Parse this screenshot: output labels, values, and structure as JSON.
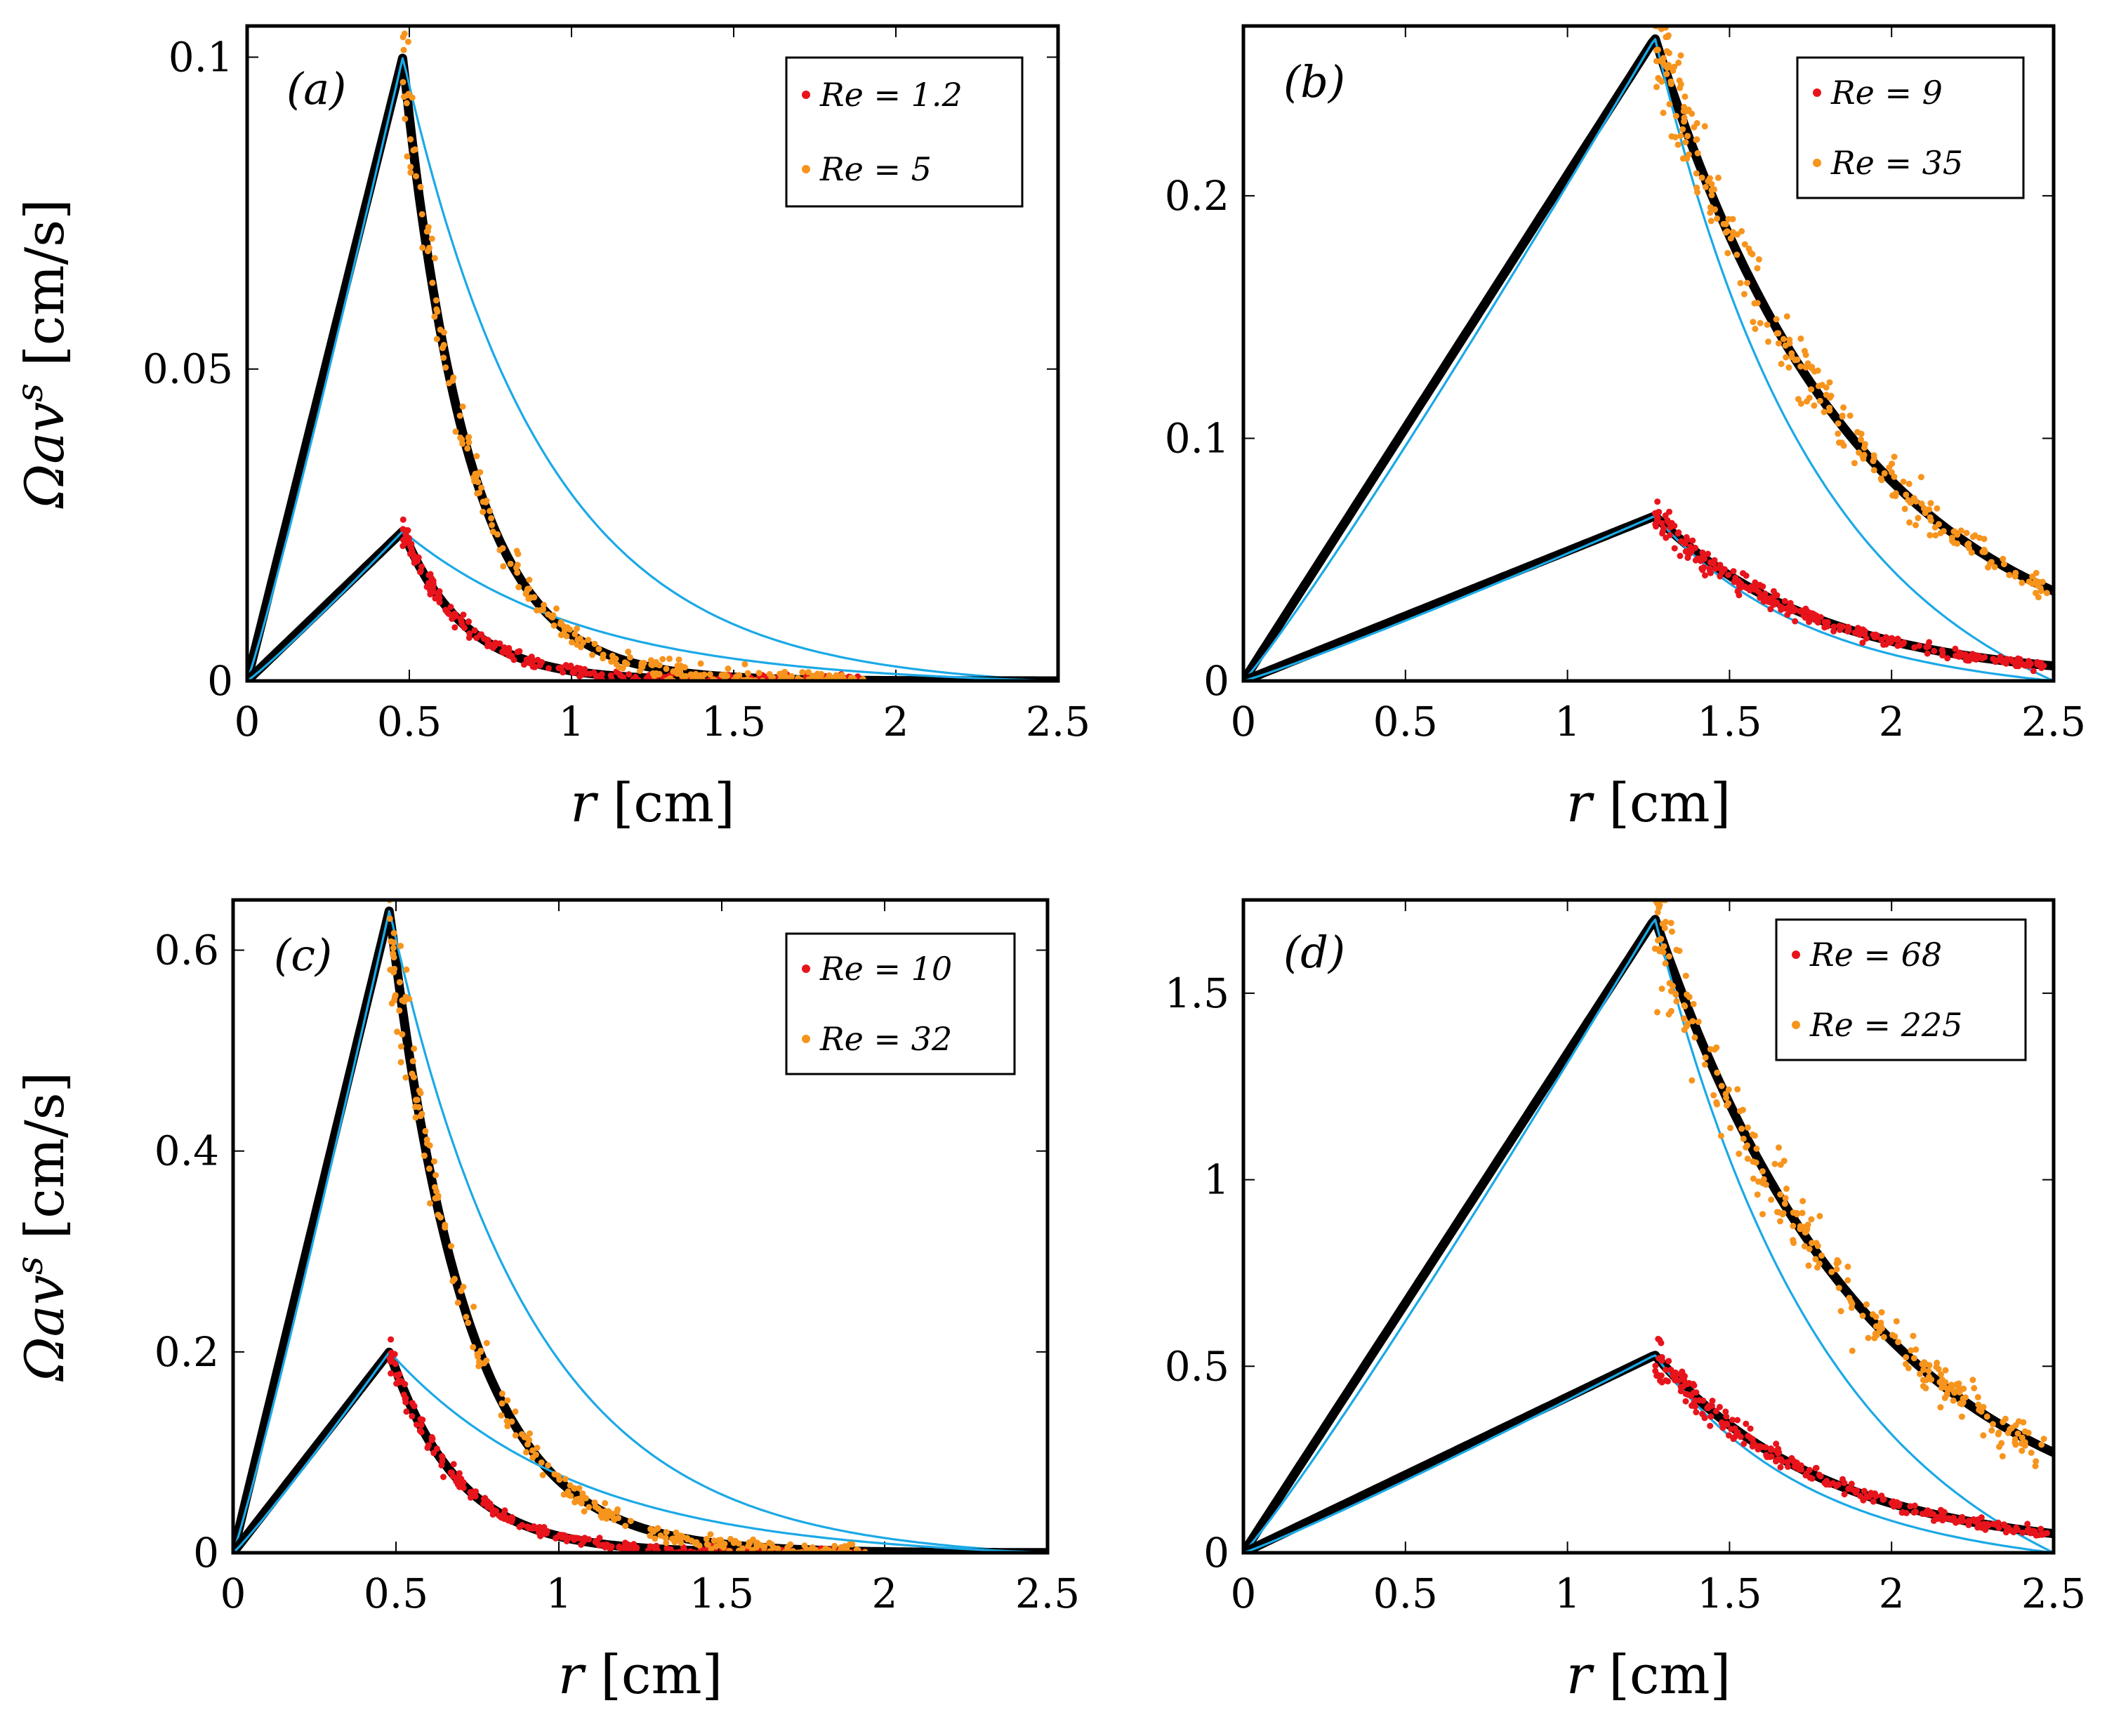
{
  "figure": {
    "y_axis_title": "Ωav^s [cm/s]",
    "x_axis_title": "r [cm]"
  },
  "colors": {
    "re_low": "#e8141c",
    "re_high": "#f7941d",
    "model_thin": "#1ba9e6",
    "model_thick": "#000000"
  },
  "chart_data": [
    {
      "type": "line",
      "panel_label": "(a)",
      "xlabel": "r [cm]",
      "ylabel": "Ωav^s [cm/s]",
      "xlim": [
        0,
        2.5
      ],
      "ylim": [
        0,
        0.105
      ],
      "xticks": [
        "0",
        "0.5",
        "1",
        "1.5",
        "2",
        "2.5"
      ],
      "yticks": [
        "0",
        "0.05",
        "0.1"
      ],
      "r_peak": 0.48,
      "legend": [
        "Re = 1.2",
        "Re = 5"
      ],
      "series": [
        {
          "name": "Re = 5 (peak)",
          "peak": 0.1,
          "decay_thick": 5.0,
          "decay_thin": 1.55
        },
        {
          "name": "Re = 1.2 (peak)",
          "peak": 0.024,
          "decay_thick": 5.2,
          "decay_thin": 1.2
        }
      ],
      "scatter_low": {
        "name": "Re = 1.2",
        "x_range": [
          0.48,
          1.9
        ],
        "noise": 0.0015
      },
      "scatter_high": {
        "name": "Re = 5",
        "x_range": [
          0.48,
          1.9
        ],
        "noise": 0.003
      }
    },
    {
      "type": "line",
      "panel_label": "(b)",
      "xlabel": "r [cm]",
      "ylabel": "",
      "xlim": [
        0,
        2.5
      ],
      "ylim": [
        0,
        0.27
      ],
      "xticks": [
        "0",
        "0.5",
        "1",
        "1.5",
        "2",
        "2.5"
      ],
      "yticks": [
        "0",
        "0.1",
        "0.2"
      ],
      "r_peak": 1.27,
      "legend": [
        "Re = 9",
        "Re = 35"
      ],
      "series": [
        {
          "name": "Re = 35 (peak)",
          "peak": 0.265,
          "decay_thick": 1.6,
          "decay_thin": 0.85
        },
        {
          "name": "Re = 9 (peak)",
          "peak": 0.068,
          "decay_thick": 1.95,
          "decay_thin": 0.9
        }
      ],
      "scatter_low": {
        "name": "Re = 9",
        "x_range": [
          1.27,
          2.48
        ],
        "noise": 0.003
      },
      "scatter_high": {
        "name": "Re = 35",
        "x_range": [
          1.27,
          2.48
        ],
        "noise": 0.006
      }
    },
    {
      "type": "line",
      "panel_label": "(c)",
      "xlabel": "r [cm]",
      "ylabel": "Ωav^s [cm/s]",
      "xlim": [
        0,
        2.5
      ],
      "ylim": [
        0,
        0.65
      ],
      "xticks": [
        "0",
        "0.5",
        "1",
        "1.5",
        "2",
        "2.5"
      ],
      "yticks": [
        "0",
        "0.2",
        "0.4",
        "0.6"
      ],
      "r_peak": 0.48,
      "legend": [
        "Re = 10",
        "Re = 32"
      ],
      "series": [
        {
          "name": "Re = 32 (peak)",
          "peak": 0.64,
          "decay_thick": 4.2,
          "decay_thin": 1.55
        },
        {
          "name": "Re = 10 (peak)",
          "peak": 0.2,
          "decay_thick": 4.8,
          "decay_thin": 1.2
        }
      ],
      "scatter_low": {
        "name": "Re = 10",
        "x_range": [
          0.48,
          1.95
        ],
        "noise": 0.008
      },
      "scatter_high": {
        "name": "Re = 32",
        "x_range": [
          0.48,
          1.95
        ],
        "noise": 0.015
      }
    },
    {
      "type": "line",
      "panel_label": "(d)",
      "xlabel": "r [cm]",
      "ylabel": "",
      "xlim": [
        0,
        2.5
      ],
      "ylim": [
        0,
        1.75
      ],
      "xticks": [
        "0",
        "0.5",
        "1",
        "1.5",
        "2",
        "2.5"
      ],
      "yticks": [
        "0",
        "0.5",
        "1",
        "1.5"
      ],
      "r_peak": 1.27,
      "legend": [
        "Re = 68",
        "Re = 225"
      ],
      "series": [
        {
          "name": "Re = 225 (peak)",
          "peak": 1.7,
          "decay_thick": 1.5,
          "decay_thin": 0.8
        },
        {
          "name": "Re = 68 (peak)",
          "peak": 0.53,
          "decay_thick": 1.9,
          "decay_thin": 0.9
        }
      ],
      "scatter_low": {
        "name": "Re = 68",
        "x_range": [
          1.27,
          2.48
        ],
        "noise": 0.02
      },
      "scatter_high": {
        "name": "Re = 225",
        "x_range": [
          1.27,
          2.48
        ],
        "noise": 0.07
      }
    }
  ]
}
